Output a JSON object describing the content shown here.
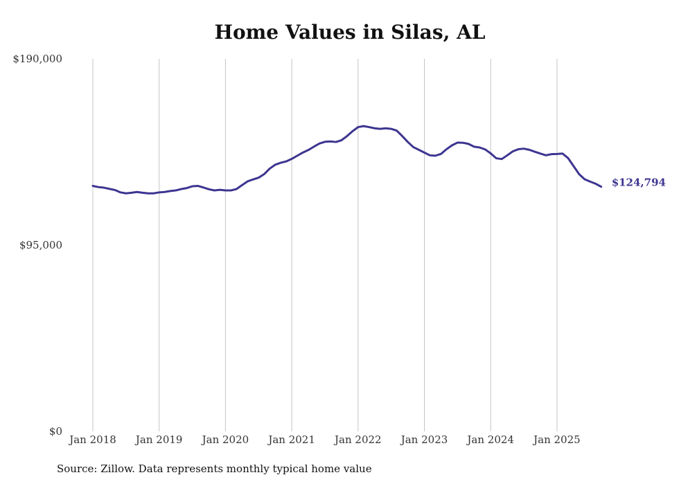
{
  "chart_data": {
    "type": "line",
    "title": "Home Values in Silas, AL",
    "xlabel": "",
    "ylabel": "",
    "ylim": [
      0,
      190000
    ],
    "y_ticks": [
      {
        "value": 0,
        "label": "$0"
      },
      {
        "value": 95000,
        "label": "$95,000"
      },
      {
        "value": 190000,
        "label": "$190,000"
      }
    ],
    "x_ticks": [
      {
        "index": 0,
        "label": "Jan 2018"
      },
      {
        "index": 12,
        "label": "Jan 2019"
      },
      {
        "index": 24,
        "label": "Jan 2020"
      },
      {
        "index": 36,
        "label": "Jan 2021"
      },
      {
        "index": 48,
        "label": "Jan 2022"
      },
      {
        "index": 60,
        "label": "Jan 2023"
      },
      {
        "index": 72,
        "label": "Jan 2024"
      },
      {
        "index": 84,
        "label": "Jan 2025"
      }
    ],
    "grid": "vertical",
    "line_color": "#3d3590",
    "end_label": "$124,794",
    "series": [
      {
        "name": "Typical home value",
        "start": "Jan 2018",
        "frequency": "monthly",
        "values": [
          125200,
          124600,
          124300,
          123700,
          123100,
          121900,
          121400,
          121700,
          122100,
          121700,
          121400,
          121400,
          121900,
          122100,
          122600,
          122900,
          123600,
          124100,
          125000,
          125200,
          124400,
          123500,
          122900,
          123200,
          122900,
          122900,
          123600,
          125600,
          127500,
          128500,
          129400,
          131200,
          134000,
          136000,
          137000,
          137700,
          139000,
          140600,
          142200,
          143500,
          145200,
          146800,
          147700,
          147900,
          147600,
          148500,
          150600,
          153100,
          155200,
          155700,
          155200,
          154600,
          154300,
          154600,
          154300,
          153400,
          150600,
          147600,
          145000,
          143600,
          142200,
          140800,
          140600,
          141500,
          143900,
          145900,
          147300,
          147200,
          146600,
          145200,
          144800,
          143800,
          141800,
          139300,
          138900,
          140800,
          142800,
          143900,
          144200,
          143600,
          142600,
          141700,
          140800,
          141400,
          141500,
          141700,
          139400,
          135300,
          131200,
          128600,
          127400,
          126300,
          124794
        ]
      }
    ]
  },
  "source_note": "Source: Zillow. Data represents monthly typical home value"
}
